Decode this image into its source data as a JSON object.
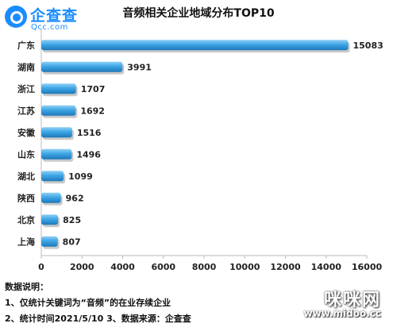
{
  "logo": {
    "name": "企查查",
    "domain": "Qcc.com"
  },
  "chart_data": {
    "type": "bar",
    "orientation": "horizontal",
    "title": "音频相关企业地域分布TOP10",
    "categories": [
      "广东",
      "湖南",
      "浙江",
      "江苏",
      "安徽",
      "山东",
      "湖北",
      "陕西",
      "北京",
      "上海"
    ],
    "values": [
      15083,
      3991,
      1707,
      1692,
      1516,
      1496,
      1099,
      962,
      825,
      807
    ],
    "xlim": [
      0,
      16000
    ],
    "xticks": [
      "0",
      "2000",
      "4000",
      "6000",
      "8000",
      "10000",
      "12000",
      "14000",
      "16000"
    ],
    "xlabel": "",
    "ylabel": "",
    "grid": false,
    "bar_color": "#3ea6e6"
  },
  "notes": {
    "heading": "数据说明：",
    "line1": "1、仅统计关键词为“音频”的在业存续企业",
    "line2": "2、统计时间2021/5/10   3、数据来源：企查查"
  },
  "watermark": {
    "text": "咪咪网",
    "url": "www.midoo.cc"
  }
}
